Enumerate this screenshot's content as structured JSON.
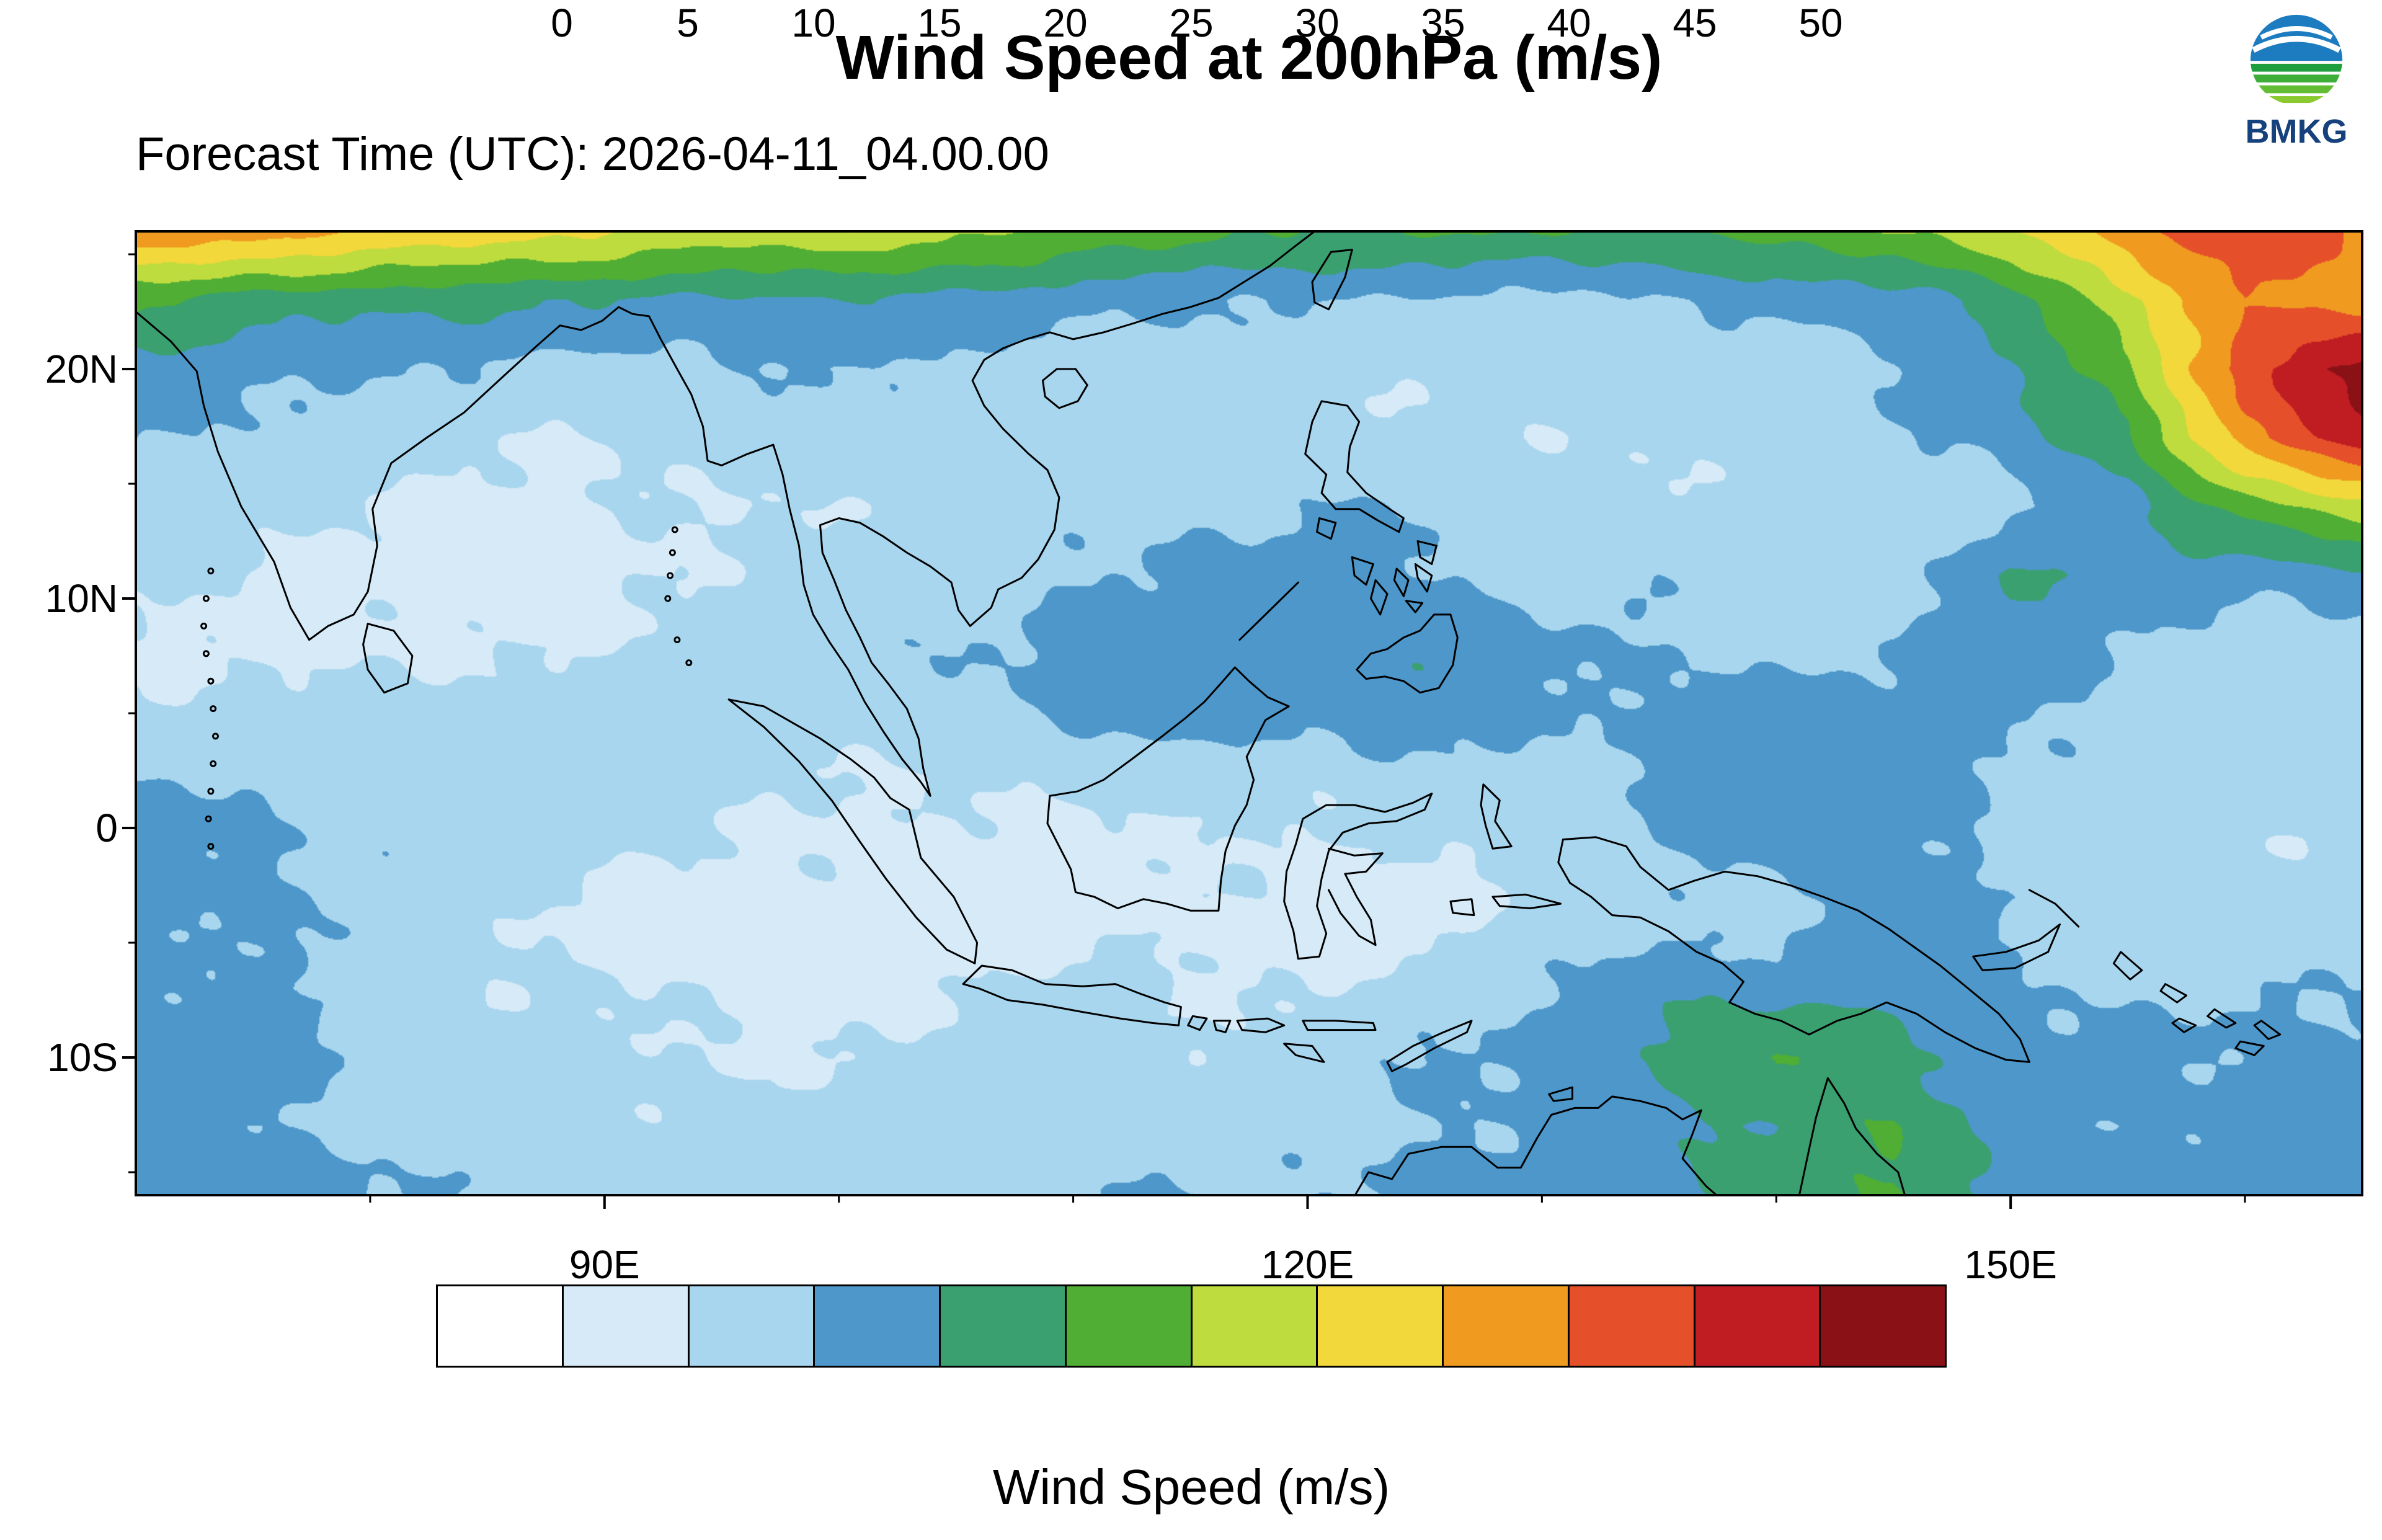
{
  "header": {
    "title": "Wind Speed at 200hPa (m/s)",
    "forecast_time": "Forecast Time (UTC): 2026-04-11_04.00.00",
    "agency": "BMKG"
  },
  "chart_data": {
    "type": "heatmap",
    "title": "Wind Speed at 200hPa (m/s)",
    "subtitle": "Forecast Time (UTC): 2026-04-11_04.00.00",
    "colorbar_label": "Wind Speed (m/s)",
    "units": "m/s",
    "legend_position": "bottom",
    "grid_lines": false,
    "levels": [
      0,
      5,
      10,
      15,
      20,
      25,
      30,
      35,
      40,
      45,
      50
    ],
    "colors": [
      "#ffffff",
      "#d6eaf7",
      "#a8d6ee",
      "#4d97ca",
      "#3ba070",
      "#4fae33",
      "#bedc3e",
      "#f2d83b",
      "#f09b20",
      "#e5502b",
      "#c01d23",
      "#8a1116"
    ],
    "lon_range": [
      70,
      165
    ],
    "lat_range_top_bottom": [
      26,
      -16
    ],
    "lon_ticks": [
      {
        "value": 90,
        "label": "90E"
      },
      {
        "value": 120,
        "label": "120E"
      },
      {
        "value": 150,
        "label": "150E"
      }
    ],
    "lon_minor_ticks": [
      80,
      100,
      110,
      130,
      140,
      160
    ],
    "lat_ticks": [
      {
        "value": 20,
        "label": "20N"
      },
      {
        "value": 10,
        "label": "10N"
      },
      {
        "value": 0,
        "label": "0"
      },
      {
        "value": -10,
        "label": "10S"
      }
    ],
    "lat_minor_ticks": [
      25,
      15,
      5,
      -5,
      -15
    ],
    "grid": {
      "lons": [
        70,
        75,
        80,
        85,
        90,
        95,
        100,
        105,
        110,
        115,
        120,
        125,
        130,
        135,
        140,
        145,
        150,
        155,
        160,
        165
      ],
      "lats": [
        26,
        23,
        20,
        17,
        14,
        11,
        8,
        5,
        2,
        -1,
        -4,
        -7,
        -10,
        -13,
        -16
      ],
      "wind_speed_ms": [
        [
          39,
          37,
          36,
          33,
          30,
          28,
          30,
          26,
          24,
          22,
          20,
          20,
          20,
          20,
          22,
          24,
          30,
          38,
          44,
          40
        ],
        [
          20,
          18,
          17,
          16,
          15,
          14,
          15,
          13,
          12,
          11,
          10,
          9,
          9,
          10,
          11,
          13,
          18,
          28,
          40,
          38
        ],
        [
          14,
          12,
          10,
          9,
          8,
          9,
          10,
          9,
          8,
          7,
          6,
          6,
          6,
          7,
          8,
          10,
          14,
          24,
          44,
          52
        ],
        [
          11,
          9,
          7,
          6,
          5,
          6,
          8,
          7,
          6,
          6,
          7,
          6,
          5,
          6,
          7,
          9,
          12,
          20,
          38,
          48
        ],
        [
          8,
          6,
          5,
          4,
          4,
          5,
          6,
          6,
          8,
          9,
          10,
          9,
          7,
          6,
          6,
          7,
          9,
          13,
          22,
          28
        ],
        [
          6,
          5,
          4,
          3,
          4,
          6,
          7,
          8,
          10,
          12,
          12,
          11,
          8,
          9,
          6,
          7,
          16,
          12,
          12,
          14
        ],
        [
          5,
          4,
          4,
          4,
          5,
          7,
          8,
          10,
          12,
          13,
          14,
          16,
          11,
          9,
          9,
          10,
          13,
          10,
          8,
          8
        ],
        [
          6,
          6,
          6,
          7,
          9,
          8,
          7,
          9,
          11,
          13,
          12,
          14,
          10,
          11,
          13,
          11,
          11,
          9,
          7,
          6
        ],
        [
          10,
          9,
          8,
          8,
          9,
          7,
          5,
          5,
          6,
          7,
          6,
          7,
          9,
          11,
          12,
          13,
          10,
          8,
          6,
          7
        ],
        [
          12,
          11,
          9,
          7,
          6,
          5,
          4,
          3,
          4,
          5,
          4,
          5,
          7,
          9,
          11,
          12,
          9,
          7,
          6,
          6
        ],
        [
          12,
          11,
          9,
          6,
          4,
          3,
          3,
          3,
          3,
          4,
          3,
          4,
          6,
          8,
          9,
          12,
          9,
          8,
          7,
          8
        ],
        [
          11,
          10,
          8,
          6,
          5,
          4,
          4,
          5,
          6,
          5,
          5,
          6,
          9,
          15,
          12,
          14,
          11,
          9,
          9,
          10
        ],
        [
          11,
          12,
          10,
          7,
          6,
          5,
          5,
          6,
          7,
          6,
          8,
          10,
          12,
          16,
          21,
          16,
          13,
          11,
          10,
          12
        ],
        [
          12,
          11,
          9,
          8,
          7,
          6,
          7,
          8,
          8,
          7,
          8,
          10,
          11,
          13,
          16,
          21,
          12,
          10,
          12,
          13
        ],
        [
          13,
          12,
          10,
          9,
          8,
          7,
          8,
          9,
          10,
          9,
          10,
          12,
          12,
          14,
          18,
          20,
          13,
          12,
          13,
          14
        ]
      ]
    }
  }
}
